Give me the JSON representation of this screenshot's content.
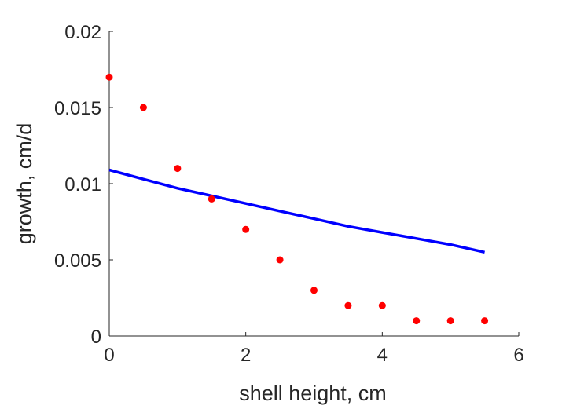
{
  "chart_data": {
    "type": "scatter",
    "title": "",
    "xlabel": "shell height, cm",
    "ylabel": "growth, cm/d",
    "xlim": [
      0,
      6
    ],
    "ylim": [
      0,
      0.02
    ],
    "xticks": [
      0,
      2,
      4,
      6
    ],
    "xtick_labels": [
      "0",
      "2",
      "4",
      "6"
    ],
    "yticks": [
      0,
      0.005,
      0.01,
      0.015,
      0.02
    ],
    "ytick_labels": [
      "0",
      "0.005",
      "0.01",
      "0.015",
      "0.02"
    ],
    "grid": false,
    "legend": "none",
    "series": [
      {
        "kind": "scatter",
        "color": "#ff0000",
        "x": [
          0,
          0.5,
          1,
          1.5,
          2,
          2.5,
          3,
          3.5,
          4,
          4.5,
          5,
          5.5
        ],
        "y": [
          0.017,
          0.015,
          0.011,
          0.009,
          0.007,
          0.005,
          0.003,
          0.002,
          0.002,
          0.001,
          0.001,
          0.001
        ]
      },
      {
        "kind": "line",
        "color": "#0000ff",
        "x": [
          0,
          0.5,
          1,
          1.5,
          2,
          2.5,
          3,
          3.5,
          4,
          4.5,
          5,
          5.5
        ],
        "y": [
          0.0109,
          0.0103,
          0.0097,
          0.0092,
          0.0087,
          0.0082,
          0.0077,
          0.0072,
          0.0068,
          0.0064,
          0.006,
          0.0055
        ]
      }
    ]
  }
}
